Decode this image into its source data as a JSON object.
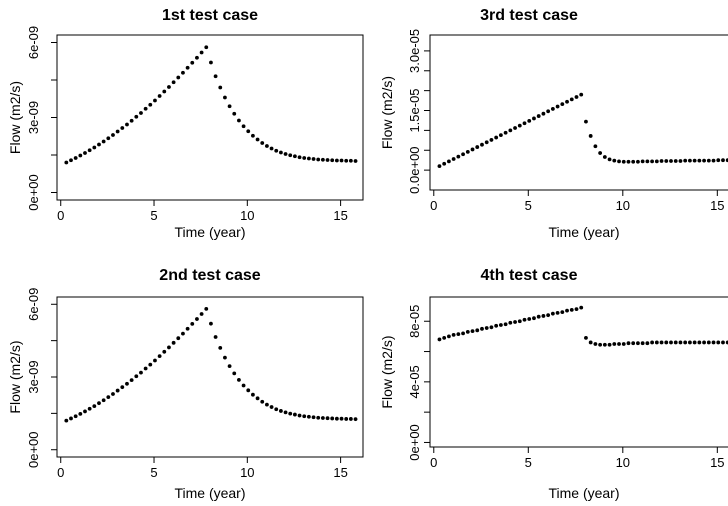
{
  "chart_data": [
    {
      "type": "scatter",
      "title": "1st test case",
      "xlabel": "Time (year)",
      "ylabel": "Flow (m2/s)",
      "xlim": [
        -0.2,
        16.2
      ],
      "ylim": [
        -3e-10,
        6.3e-09
      ],
      "xticks": [
        0,
        5,
        10,
        15
      ],
      "xtick_labels": [
        "0",
        "5",
        "10",
        "15"
      ],
      "yticks": [
        0,
        1.5e-09,
        3e-09,
        4.5e-09,
        6e-09
      ],
      "ytick_labels": [
        "0e+00",
        "",
        "3e-09",
        "",
        "6e-09"
      ],
      "x": [
        0.3,
        0.55,
        0.8,
        1.05,
        1.3,
        1.55,
        1.8,
        2.05,
        2.3,
        2.55,
        2.8,
        3.05,
        3.3,
        3.55,
        3.8,
        4.05,
        4.3,
        4.55,
        4.8,
        5.05,
        5.3,
        5.55,
        5.8,
        6.05,
        6.3,
        6.55,
        6.8,
        7.05,
        7.3,
        7.55,
        7.8,
        8.05,
        8.3,
        8.55,
        8.8,
        9.05,
        9.3,
        9.55,
        9.8,
        10.05,
        10.3,
        10.55,
        10.8,
        11.05,
        11.3,
        11.55,
        11.8,
        12.05,
        12.3,
        12.55,
        12.8,
        13.05,
        13.3,
        13.55,
        13.8,
        14.05,
        14.3,
        14.55,
        14.8,
        15.05,
        15.3,
        15.55,
        15.8
      ],
      "y": [
        1.2e-09,
        1.29e-09,
        1.38e-09,
        1.48e-09,
        1.58e-09,
        1.69e-09,
        1.8e-09,
        1.92e-09,
        2.04e-09,
        2.17e-09,
        2.3e-09,
        2.44e-09,
        2.58e-09,
        2.72e-09,
        2.87e-09,
        3.03e-09,
        3.18e-09,
        3.35e-09,
        3.51e-09,
        3.68e-09,
        3.86e-09,
        4.04e-09,
        4.22e-09,
        4.41e-09,
        4.6e-09,
        4.79e-09,
        4.99e-09,
        5.19e-09,
        5.39e-09,
        5.6e-09,
        5.81e-09,
        5.2e-09,
        4.65e-09,
        4.2e-09,
        3.8e-09,
        3.45e-09,
        3.15e-09,
        2.88e-09,
        2.65e-09,
        2.45e-09,
        2.27e-09,
        2.12e-09,
        1.98e-09,
        1.86e-09,
        1.76e-09,
        1.67e-09,
        1.6e-09,
        1.54e-09,
        1.49e-09,
        1.45e-09,
        1.41e-09,
        1.38e-09,
        1.36e-09,
        1.34e-09,
        1.32e-09,
        1.31e-09,
        1.3e-09,
        1.29e-09,
        1.28e-09,
        1.28e-09,
        1.27e-09,
        1.27e-09,
        1.26e-09
      ]
    },
    {
      "type": "scatter",
      "title": "3rd test case",
      "xlabel": "Time (year)",
      "ylabel": "Flow (m2/s)",
      "xlim": [
        -0.2,
        16.2
      ],
      "ylim": [
        -5e-06,
        3.4e-05
      ],
      "xticks": [
        0,
        5,
        10,
        15
      ],
      "xtick_labels": [
        "0",
        "5",
        "10",
        "15"
      ],
      "yticks": [
        0,
        5e-06,
        1e-05,
        1.5e-05,
        2e-05,
        2.5e-05,
        3e-05
      ],
      "ytick_labels": [
        "0.0e+00",
        "",
        "",
        "1.5e-05",
        "",
        "",
        "3.0e-05"
      ],
      "x": [
        0.3,
        0.55,
        0.8,
        1.05,
        1.3,
        1.55,
        1.8,
        2.05,
        2.3,
        2.55,
        2.8,
        3.05,
        3.3,
        3.55,
        3.8,
        4.05,
        4.3,
        4.55,
        4.8,
        5.05,
        5.3,
        5.55,
        5.8,
        6.05,
        6.3,
        6.55,
        6.8,
        7.05,
        7.3,
        7.55,
        7.8,
        8.05,
        8.3,
        8.55,
        8.8,
        9.05,
        9.3,
        9.55,
        9.8,
        10.05,
        10.3,
        10.55,
        10.8,
        11.05,
        11.3,
        11.55,
        11.8,
        12.05,
        12.3,
        12.55,
        12.8,
        13.05,
        13.3,
        13.55,
        13.8,
        14.05,
        14.3,
        14.55,
        14.8,
        15.05,
        15.3,
        15.55,
        15.8
      ],
      "y": [
        1e-06,
        1.6e-06,
        2.2e-06,
        2.8e-06,
        3.4e-06,
        4e-06,
        4.6e-06,
        5.2e-06,
        5.8e-06,
        6.4e-06,
        7e-06,
        7.6e-06,
        8.2e-06,
        8.8e-06,
        9.4e-06,
        1e-05,
        1.06e-05,
        1.12e-05,
        1.18e-05,
        1.24e-05,
        1.3e-05,
        1.36e-05,
        1.42e-05,
        1.48e-05,
        1.54e-05,
        1.6e-05,
        1.66e-05,
        1.72e-05,
        1.78e-05,
        1.84e-05,
        1.9e-05,
        1.22e-05,
        8.6e-06,
        6e-06,
        4.3e-06,
        3.3e-06,
        2.7e-06,
        2.4e-06,
        2.2e-06,
        2.1e-06,
        2.1e-06,
        2.1e-06,
        2.1e-06,
        2.2e-06,
        2.2e-06,
        2.2e-06,
        2.2e-06,
        2.3e-06,
        2.3e-06,
        2.3e-06,
        2.3e-06,
        2.3e-06,
        2.4e-06,
        2.4e-06,
        2.4e-06,
        2.4e-06,
        2.4e-06,
        2.4e-06,
        2.4e-06,
        2.5e-06,
        2.5e-06,
        2.5e-06,
        2.5e-06
      ]
    },
    {
      "type": "scatter",
      "title": "2nd test case",
      "xlabel": "Time (year)",
      "ylabel": "Flow (m2/s)",
      "xlim": [
        -0.2,
        16.2
      ],
      "ylim": [
        -3e-10,
        6.3e-09
      ],
      "xticks": [
        0,
        5,
        10,
        15
      ],
      "xtick_labels": [
        "0",
        "5",
        "10",
        "15"
      ],
      "yticks": [
        0,
        1.5e-09,
        3e-09,
        4.5e-09,
        6e-09
      ],
      "ytick_labels": [
        "0e+00",
        "",
        "3e-09",
        "",
        "6e-09"
      ],
      "x": [
        0.3,
        0.55,
        0.8,
        1.05,
        1.3,
        1.55,
        1.8,
        2.05,
        2.3,
        2.55,
        2.8,
        3.05,
        3.3,
        3.55,
        3.8,
        4.05,
        4.3,
        4.55,
        4.8,
        5.05,
        5.3,
        5.55,
        5.8,
        6.05,
        6.3,
        6.55,
        6.8,
        7.05,
        7.3,
        7.55,
        7.8,
        8.05,
        8.3,
        8.55,
        8.8,
        9.05,
        9.3,
        9.55,
        9.8,
        10.05,
        10.3,
        10.55,
        10.8,
        11.05,
        11.3,
        11.55,
        11.8,
        12.05,
        12.3,
        12.55,
        12.8,
        13.05,
        13.3,
        13.55,
        13.8,
        14.05,
        14.3,
        14.55,
        14.8,
        15.05,
        15.3,
        15.55,
        15.8
      ],
      "y": [
        1.2e-09,
        1.29e-09,
        1.38e-09,
        1.48e-09,
        1.58e-09,
        1.69e-09,
        1.8e-09,
        1.92e-09,
        2.04e-09,
        2.17e-09,
        2.3e-09,
        2.44e-09,
        2.58e-09,
        2.72e-09,
        2.87e-09,
        3.03e-09,
        3.18e-09,
        3.35e-09,
        3.51e-09,
        3.68e-09,
        3.86e-09,
        4.04e-09,
        4.22e-09,
        4.41e-09,
        4.6e-09,
        4.79e-09,
        4.99e-09,
        5.19e-09,
        5.39e-09,
        5.6e-09,
        5.81e-09,
        5.2e-09,
        4.65e-09,
        4.2e-09,
        3.8e-09,
        3.45e-09,
        3.15e-09,
        2.88e-09,
        2.65e-09,
        2.45e-09,
        2.27e-09,
        2.12e-09,
        1.98e-09,
        1.86e-09,
        1.76e-09,
        1.67e-09,
        1.6e-09,
        1.54e-09,
        1.49e-09,
        1.45e-09,
        1.41e-09,
        1.38e-09,
        1.36e-09,
        1.34e-09,
        1.32e-09,
        1.31e-09,
        1.3e-09,
        1.29e-09,
        1.28e-09,
        1.28e-09,
        1.27e-09,
        1.27e-09,
        1.26e-09
      ]
    },
    {
      "type": "scatter",
      "title": "4th test case",
      "xlabel": "Time (year)",
      "ylabel": "Flow (m2/s)",
      "xlim": [
        -0.2,
        16.2
      ],
      "ylim": [
        -3e-06,
        9.6e-05
      ],
      "xticks": [
        0,
        5,
        10,
        15
      ],
      "xtick_labels": [
        "0",
        "5",
        "10",
        "15"
      ],
      "yticks": [
        0,
        2e-05,
        4e-05,
        6e-05,
        8e-05
      ],
      "ytick_labels": [
        "0e+00",
        "",
        "4e-05",
        "",
        "8e-05"
      ],
      "x": [
        0.3,
        0.55,
        0.8,
        1.05,
        1.3,
        1.55,
        1.8,
        2.05,
        2.3,
        2.55,
        2.8,
        3.05,
        3.3,
        3.55,
        3.8,
        4.05,
        4.3,
        4.55,
        4.8,
        5.05,
        5.3,
        5.55,
        5.8,
        6.05,
        6.3,
        6.55,
        6.8,
        7.05,
        7.3,
        7.55,
        7.8,
        8.05,
        8.3,
        8.55,
        8.8,
        9.05,
        9.3,
        9.55,
        9.8,
        10.05,
        10.3,
        10.55,
        10.8,
        11.05,
        11.3,
        11.55,
        11.8,
        12.05,
        12.3,
        12.55,
        12.8,
        13.05,
        13.3,
        13.55,
        13.8,
        14.05,
        14.3,
        14.55,
        14.8,
        15.05,
        15.3,
        15.55,
        15.8
      ],
      "y": [
        6.8e-05,
        6.9e-05,
        7e-05,
        7.1e-05,
        7.15e-05,
        7.2e-05,
        7.3e-05,
        7.35e-05,
        7.4e-05,
        7.5e-05,
        7.55e-05,
        7.6e-05,
        7.7e-05,
        7.75e-05,
        7.8e-05,
        7.9e-05,
        7.95e-05,
        8e-05,
        8.1e-05,
        8.15e-05,
        8.2e-05,
        8.3e-05,
        8.35e-05,
        8.4e-05,
        8.5e-05,
        8.55e-05,
        8.6e-05,
        8.7e-05,
        8.75e-05,
        8.8e-05,
        8.9e-05,
        6.9e-05,
        6.6e-05,
        6.5e-05,
        6.45e-05,
        6.45e-05,
        6.45e-05,
        6.5e-05,
        6.5e-05,
        6.5e-05,
        6.55e-05,
        6.55e-05,
        6.55e-05,
        6.55e-05,
        6.55e-05,
        6.6e-05,
        6.6e-05,
        6.6e-05,
        6.6e-05,
        6.6e-05,
        6.6e-05,
        6.6e-05,
        6.6e-05,
        6.6e-05,
        6.6e-05,
        6.6e-05,
        6.6e-05,
        6.6e-05,
        6.6e-05,
        6.6e-05,
        6.6e-05,
        6.6e-05,
        6.6e-05
      ]
    }
  ]
}
